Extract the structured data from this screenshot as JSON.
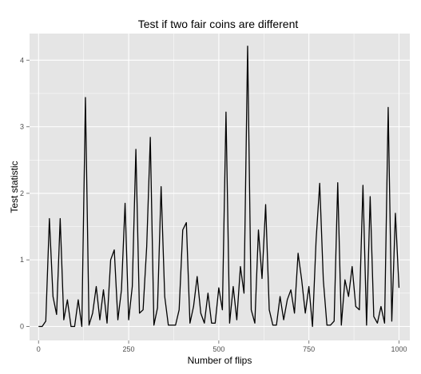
{
  "chart_data": {
    "type": "line",
    "title": "Test if two fair coins are different",
    "xlabel": "Number of flips",
    "ylabel": "Test statistic",
    "xlim": [
      -25,
      1030
    ],
    "ylim": [
      -0.21,
      4.4
    ],
    "xticks": [
      0,
      250,
      500,
      750,
      1000
    ],
    "yticks": [
      0,
      1,
      2,
      3,
      4
    ],
    "grid": true,
    "colors": {
      "panel": "#e5e5e5",
      "grid": "#ffffff",
      "line": "#000000",
      "tick": "#7f7f7f"
    },
    "series": [
      {
        "x": [
          0,
          10,
          20,
          30,
          40,
          50,
          60,
          70,
          80,
          90,
          100,
          110,
          120,
          130,
          140,
          150,
          160,
          170,
          180,
          190,
          200,
          210,
          220,
          230,
          240,
          250,
          260,
          270,
          280,
          290,
          300,
          310,
          320,
          330,
          340,
          350,
          360,
          370,
          380,
          390,
          400,
          410,
          420,
          430,
          440,
          450,
          460,
          470,
          480,
          490,
          500,
          510,
          520,
          530,
          540,
          550,
          560,
          570,
          580,
          590,
          600,
          610,
          620,
          630,
          640,
          650,
          660,
          670,
          680,
          690,
          700,
          710,
          720,
          730,
          740,
          750,
          760,
          770,
          780,
          790,
          800,
          810,
          820,
          830,
          840,
          850,
          860,
          870,
          880,
          890,
          900,
          910,
          920,
          930,
          940,
          950,
          960,
          970,
          980,
          990,
          1000
        ],
        "y": [
          0,
          0,
          0.08,
          1.62,
          0.45,
          0.18,
          1.62,
          0.1,
          0.4,
          0,
          0,
          0.4,
          0,
          3.44,
          0.02,
          0.2,
          0.6,
          0.1,
          0.55,
          0.05,
          1.0,
          1.15,
          0.1,
          0.55,
          1.85,
          0.1,
          0.6,
          2.66,
          0.2,
          0.25,
          1.2,
          2.84,
          0.02,
          0.28,
          2.1,
          0.45,
          0.02,
          0.02,
          0.02,
          0.25,
          1.45,
          1.56,
          0.05,
          0.3,
          0.75,
          0.2,
          0.05,
          0.5,
          0.05,
          0.05,
          0.58,
          0.25,
          3.22,
          0.05,
          0.6,
          0.1,
          0.9,
          0.5,
          4.21,
          0.25,
          0.05,
          1.45,
          0.72,
          1.83,
          0.25,
          0.02,
          0.02,
          0.45,
          0.1,
          0.4,
          0.55,
          0.2,
          1.1,
          0.7,
          0.2,
          0.6,
          0,
          1.3,
          2.15,
          0.7,
          0.02,
          0.02,
          0.08,
          2.16,
          0.02,
          0.7,
          0.45,
          0.9,
          0.3,
          0.25,
          2.12,
          0.02,
          1.95,
          0.15,
          0.05,
          0.3,
          0.05,
          3.29,
          0.08,
          1.7,
          0.58
        ]
      }
    ]
  }
}
